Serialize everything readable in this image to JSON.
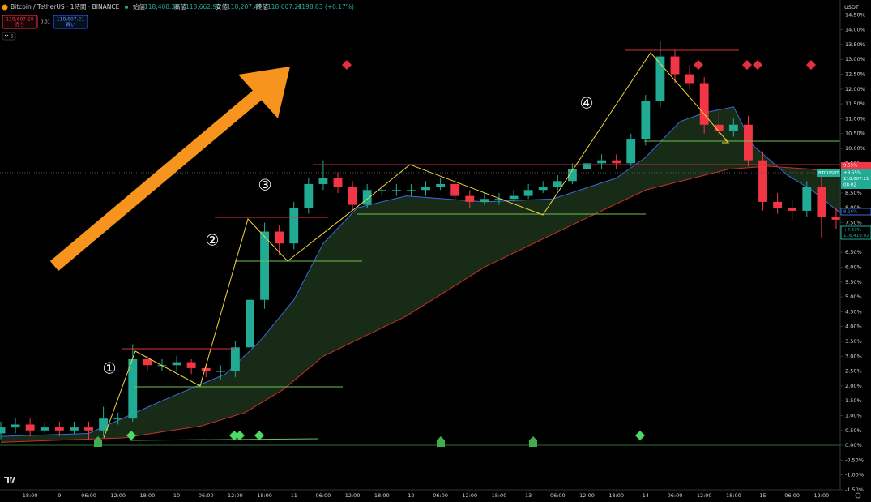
{
  "header": {
    "symbol": "Bitcoin / TetherUS · 1時間 · BINANCE",
    "ohlc": [
      [
        "始値",
        "118,408.38"
      ],
      [
        "高値",
        "118,662.90"
      ],
      [
        "安値",
        "118,207.47"
      ],
      [
        "終値",
        "118,607.21"
      ]
    ],
    "change": "+198.83 (+0.17%)",
    "sell_price": "118,607.20",
    "sell": "売り",
    "spread": "0.01",
    "buy_price": "118,607.21",
    "buy": "買い",
    "indicators": "6"
  },
  "price_scale": {
    "currency": "USDT",
    "red_tag": "9.55%",
    "symbol_tag": "BTCUSDT",
    "last_change": "+9.55%",
    "last_price": "118,607.21",
    "countdown": "08:02",
    "blue_tag": "8.16%",
    "green_change": "+7.53%",
    "green_price": "116,419.02"
  },
  "annotations": [
    "①",
    "②",
    "③",
    "④"
  ],
  "chart_data": {
    "type": "candlestick",
    "up_color": "#22ab94",
    "down_color": "#f23645",
    "x": [
      0,
      3,
      6,
      9,
      12,
      15,
      18,
      21,
      24,
      27,
      30,
      33,
      36,
      39,
      42,
      45,
      48,
      51,
      54,
      57,
      60,
      63,
      66,
      69,
      72,
      75,
      78,
      81,
      84,
      87,
      90,
      93,
      96,
      99,
      102,
      105,
      108,
      111,
      114,
      117,
      120,
      123,
      126,
      129,
      132,
      135,
      138,
      141,
      144,
      147,
      150,
      153,
      156,
      159,
      162,
      165,
      168,
      171
    ],
    "open": [
      0.4,
      0.6,
      0.7,
      0.5,
      0.6,
      0.5,
      0.6,
      0.5,
      0.9,
      0.9,
      2.9,
      2.7,
      2.7,
      2.8,
      2.6,
      2.5,
      2.5,
      3.3,
      4.9,
      7.2,
      6.8,
      8.0,
      8.8,
      9.0,
      8.7,
      8.1,
      8.6,
      8.6,
      8.6,
      8.6,
      8.7,
      8.8,
      8.4,
      8.2,
      8.3,
      8.3,
      8.4,
      8.6,
      8.7,
      8.9,
      9.3,
      9.5,
      9.6,
      9.5,
      10.3,
      11.6,
      13.1,
      12.5,
      12.2,
      10.8,
      10.6,
      10.8,
      9.6,
      8.2,
      8.0,
      7.9,
      8.7,
      7.7
    ],
    "high": [
      0.8,
      0.9,
      0.9,
      0.8,
      0.8,
      0.8,
      0.8,
      1.3,
      1.1,
      3.4,
      3.0,
      2.9,
      3.0,
      2.9,
      2.7,
      2.7,
      3.5,
      5.0,
      7.5,
      7.4,
      8.2,
      9.0,
      9.6,
      9.2,
      8.9,
      8.8,
      8.8,
      8.8,
      8.8,
      8.9,
      9.0,
      9.0,
      8.6,
      8.5,
      8.5,
      8.6,
      8.8,
      8.9,
      9.1,
      9.5,
      9.7,
      9.8,
      9.8,
      10.5,
      11.8,
      13.6,
      13.3,
      12.8,
      12.4,
      11.2,
      11.0,
      11.1,
      9.9,
      8.5,
      8.3,
      8.9,
      9.1,
      8.0
    ],
    "low": [
      0.2,
      0.4,
      0.3,
      0.4,
      0.3,
      0.4,
      0.2,
      0.3,
      0.7,
      0.8,
      2.5,
      2.5,
      2.5,
      2.4,
      2.3,
      2.2,
      2.3,
      3.1,
      4.6,
      6.4,
      6.6,
      7.8,
      8.6,
      8.5,
      7.9,
      8.0,
      8.4,
      8.4,
      8.4,
      8.4,
      8.6,
      8.3,
      8.0,
      8.1,
      8.1,
      8.2,
      8.3,
      8.5,
      8.6,
      8.8,
      9.1,
      9.3,
      9.3,
      9.4,
      10.1,
      11.4,
      12.2,
      12.0,
      10.5,
      10.4,
      10.4,
      9.4,
      7.9,
      7.8,
      7.6,
      7.7,
      7.0,
      7.3
    ],
    "close": [
      0.6,
      0.7,
      0.5,
      0.6,
      0.5,
      0.6,
      0.5,
      0.9,
      0.9,
      2.9,
      2.7,
      2.7,
      2.8,
      2.6,
      2.5,
      2.5,
      3.3,
      4.9,
      7.2,
      6.8,
      8.0,
      8.8,
      9.0,
      8.7,
      8.1,
      8.6,
      8.6,
      8.6,
      8.6,
      8.7,
      8.8,
      8.4,
      8.2,
      8.3,
      8.3,
      8.4,
      8.6,
      8.7,
      8.9,
      9.3,
      9.5,
      9.6,
      9.5,
      10.3,
      11.6,
      13.1,
      12.5,
      12.2,
      10.8,
      10.6,
      10.8,
      9.6,
      8.2,
      8.0,
      7.9,
      8.7,
      7.7,
      7.6
    ],
    "lines": [
      {
        "color": "#3a6bd8",
        "x": [
          0,
          18,
          33,
          46,
          53,
          60,
          66,
          73,
          83,
          99,
          113,
          126,
          132,
          139,
          144,
          150,
          154,
          161,
          166,
          172
        ],
        "values": [
          0.3,
          0.4,
          1.5,
          2.4,
          3.5,
          4.9,
          6.8,
          8.0,
          8.4,
          8.2,
          8.3,
          9.0,
          9.7,
          10.9,
          11.2,
          11.4,
          10.1,
          9.1,
          8.6,
          7.8
        ]
      },
      {
        "color": "#c9302c",
        "x": [
          0,
          25,
          41,
          50,
          58,
          66,
          83,
          99,
          116,
          132,
          149,
          157,
          166,
          172
        ],
        "values": [
          0.1,
          0.25,
          0.65,
          1.1,
          1.9,
          3.0,
          4.35,
          6.0,
          7.35,
          8.6,
          9.3,
          9.4,
          9.3,
          9.1
        ]
      }
    ],
    "fill_color": "#1f3a1f",
    "xlim": [
      0,
      172
    ],
    "ylim": [
      -1.5,
      15
    ],
    "grid": false,
    "xticks": [
      {
        "value": 6,
        "label": "18:00"
      },
      {
        "value": 12,
        "label": "9"
      },
      {
        "value": 18,
        "label": "06:00"
      },
      {
        "value": 24,
        "label": "12:00"
      },
      {
        "value": 30,
        "label": "18:00"
      },
      {
        "value": 36,
        "label": "10"
      },
      {
        "value": 42,
        "label": "06:00"
      },
      {
        "value": 48,
        "label": "12:00"
      },
      {
        "value": 54,
        "label": "18:00"
      },
      {
        "value": 60,
        "label": "11"
      },
      {
        "value": 66,
        "label": "06:00"
      },
      {
        "value": 72,
        "label": "12:00"
      },
      {
        "value": 78,
        "label": "18:00"
      },
      {
        "value": 84,
        "label": "12"
      },
      {
        "value": 90,
        "label": "06:00"
      },
      {
        "value": 96,
        "label": "12:00"
      },
      {
        "value": 102,
        "label": "18:00"
      },
      {
        "value": 108,
        "label": "13"
      },
      {
        "value": 114,
        "label": "06:00"
      },
      {
        "value": 120,
        "label": "12:00"
      },
      {
        "value": 126,
        "label": "18:00"
      },
      {
        "value": 132,
        "label": "14"
      },
      {
        "value": 138,
        "label": "06:00"
      },
      {
        "value": 144,
        "label": "12:00"
      },
      {
        "value": 150,
        "label": "18:00"
      },
      {
        "value": 156,
        "label": "15"
      },
      {
        "value": 162,
        "label": "06:00"
      },
      {
        "value": 168,
        "label": "12:00"
      }
    ],
    "yticks": [
      {
        "value": -1.5,
        "label": "-1.50%"
      },
      {
        "value": -1,
        "label": "-1.00%"
      },
      {
        "value": -0.5,
        "label": "-0.50%"
      },
      {
        "value": 0,
        "label": "0.00%"
      },
      {
        "value": 0.5,
        "label": "0.50%"
      },
      {
        "value": 1,
        "label": "1.00%"
      },
      {
        "value": 1.5,
        "label": "1.50%"
      },
      {
        "value": 2,
        "label": "2.00%"
      },
      {
        "value": 2.5,
        "label": "2.50%"
      },
      {
        "value": 3,
        "label": "3.00%"
      },
      {
        "value": 3.5,
        "label": "3.50%"
      },
      {
        "value": 4,
        "label": "4.00%"
      },
      {
        "value": 4.5,
        "label": "4.50%"
      },
      {
        "value": 5,
        "label": "5.00%"
      },
      {
        "value": 5.5,
        "label": "5.50%"
      },
      {
        "value": 6,
        "label": "6.00%"
      },
      {
        "value": 6.5,
        "label": "6.50%"
      },
      {
        "value": 7,
        "label": "7.00%"
      },
      {
        "value": 7.5,
        "label": "7.50%"
      },
      {
        "value": 8,
        "label": "8.00%"
      },
      {
        "value": 8.5,
        "label": "8.50%"
      },
      {
        "value": 9,
        "label": "9.00%"
      },
      {
        "value": 9.5,
        "label": "9.50%"
      },
      {
        "value": 10,
        "label": "10.00%"
      },
      {
        "value": 10.5,
        "label": "10.50%"
      },
      {
        "value": 11,
        "label": "11.00%"
      },
      {
        "value": 11.5,
        "label": "11.50%"
      },
      {
        "value": 12,
        "label": "12.00%"
      },
      {
        "value": 12.5,
        "label": "12.50%"
      },
      {
        "value": 13,
        "label": "13.00%"
      },
      {
        "value": 13.5,
        "label": "13.50%"
      },
      {
        "value": 14,
        "label": "14.00%"
      },
      {
        "value": 14.5,
        "label": "14.50%"
      }
    ]
  }
}
